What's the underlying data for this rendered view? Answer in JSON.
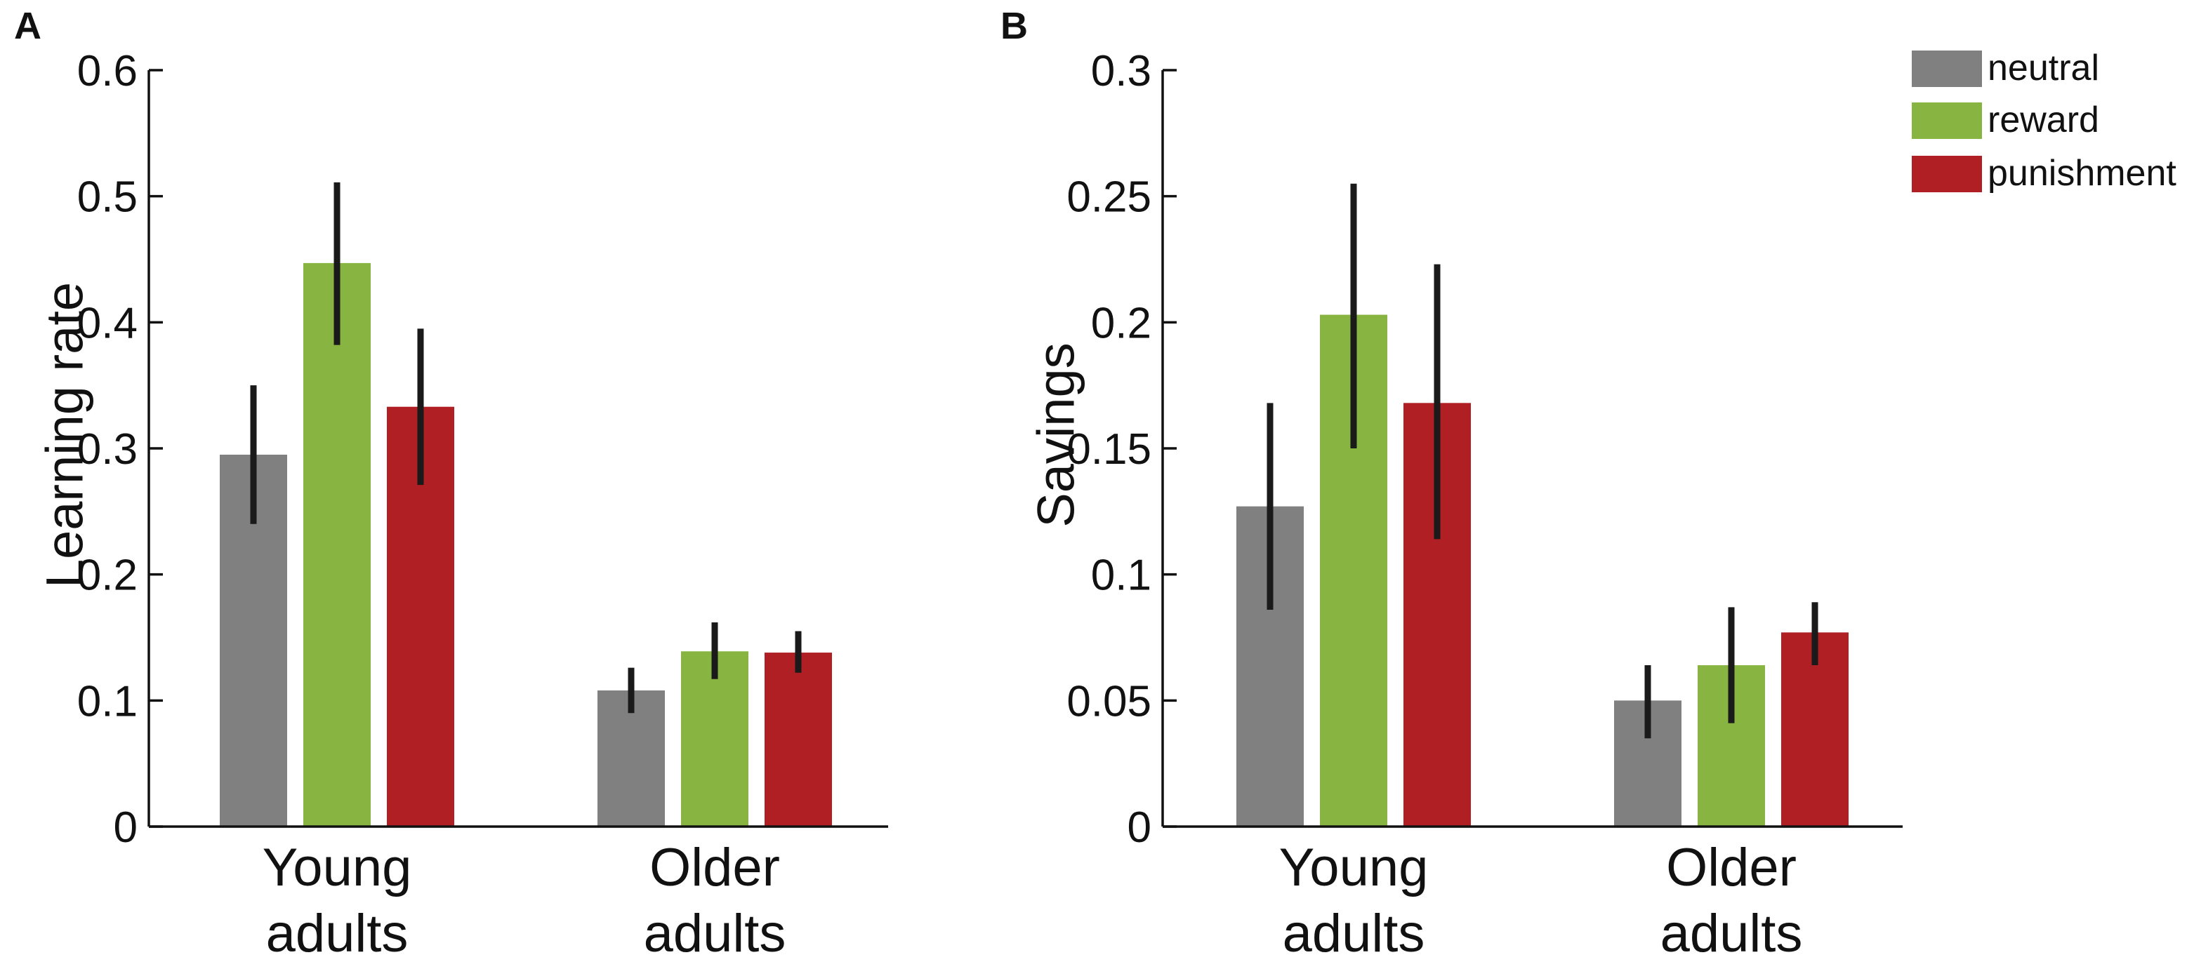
{
  "figure": {
    "legend": [
      {
        "name": "neutral",
        "color": "#808080"
      },
      {
        "name": "reward",
        "color": "#88b441"
      },
      {
        "name": "punishment",
        "color": "#b01f24"
      }
    ],
    "bar_color_keys": [
      "neutral",
      "reward",
      "punishment"
    ]
  },
  "chart_data": [
    {
      "panel": "A",
      "type": "bar",
      "categories": [
        {
          "line1": "Young",
          "line2": "adults"
        },
        {
          "line1": "Older",
          "line2": "adults"
        }
      ],
      "series": [
        {
          "name": "neutral",
          "values": [
            0.295,
            0.108
          ],
          "err_low": [
            0.24,
            0.09
          ],
          "err_high": [
            0.35,
            0.126
          ]
        },
        {
          "name": "reward",
          "values": [
            0.447,
            0.139
          ],
          "err_low": [
            0.382,
            0.117
          ],
          "err_high": [
            0.511,
            0.162
          ]
        },
        {
          "name": "punishment",
          "values": [
            0.333,
            0.138
          ],
          "err_low": [
            0.271,
            0.122
          ],
          "err_high": [
            0.395,
            0.155
          ]
        }
      ],
      "ylabel": "Learning rate",
      "ylim": [
        0,
        0.6
      ],
      "yticks": [
        0,
        0.1,
        0.2,
        0.3,
        0.4,
        0.5,
        0.6
      ],
      "ytick_labels": [
        "0",
        "0.1",
        "0.2",
        "0.3",
        "0.4",
        "0.5",
        "0.6"
      ],
      "grid": false
    },
    {
      "panel": "B",
      "type": "bar",
      "categories": [
        {
          "line1": "Young",
          "line2": "adults"
        },
        {
          "line1": "Older",
          "line2": "adults"
        }
      ],
      "series": [
        {
          "name": "neutral",
          "values": [
            0.127,
            0.05
          ],
          "err_low": [
            0.086,
            0.035
          ],
          "err_high": [
            0.168,
            0.064
          ]
        },
        {
          "name": "reward",
          "values": [
            0.203,
            0.064
          ],
          "err_low": [
            0.15,
            0.041
          ],
          "err_high": [
            0.255,
            0.087
          ]
        },
        {
          "name": "punishment",
          "values": [
            0.168,
            0.077
          ],
          "err_low": [
            0.114,
            0.064
          ],
          "err_high": [
            0.223,
            0.089
          ]
        }
      ],
      "ylabel": "Savings",
      "ylim": [
        0,
        0.3
      ],
      "yticks": [
        0,
        0.05,
        0.1,
        0.15,
        0.2,
        0.25,
        0.3
      ],
      "ytick_labels": [
        "0",
        "0.05",
        "0.1",
        "0.15",
        "0.2",
        "0.25",
        "0.3"
      ],
      "grid": false,
      "legend_position": "top-right"
    }
  ]
}
